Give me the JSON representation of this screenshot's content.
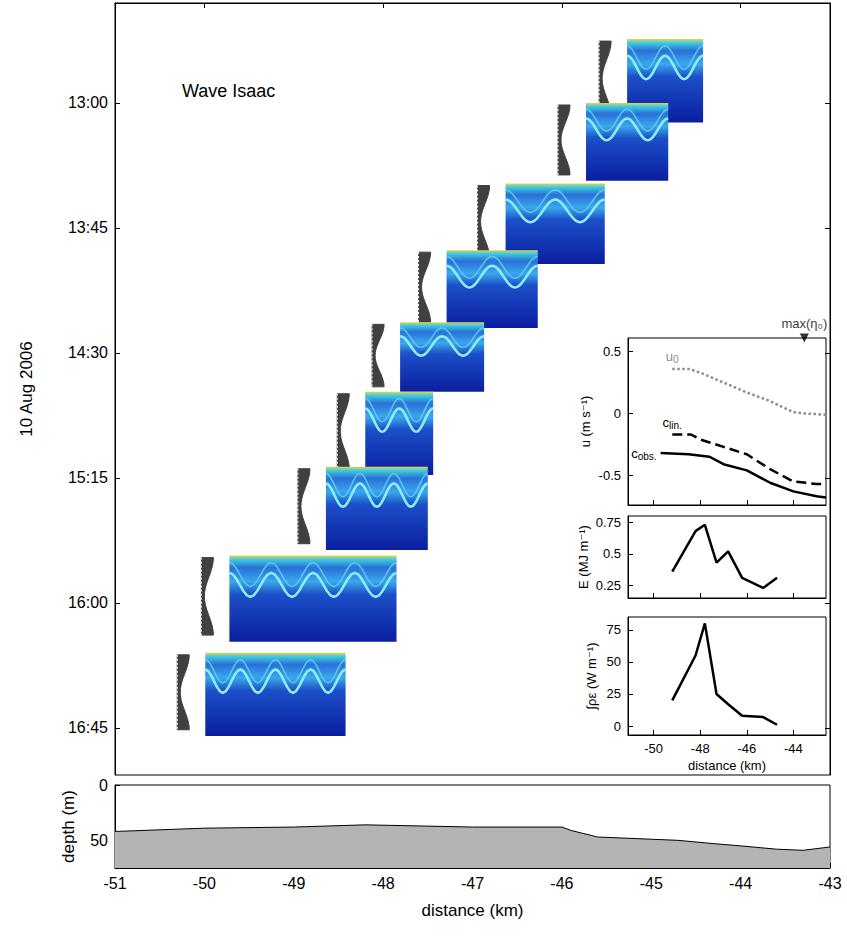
{
  "chart_data": [
    {
      "type": "custom",
      "title": "Wave Isaac",
      "ylabel": "10 Aug 2006",
      "xlim": [
        -51,
        -43
      ],
      "xticks": [
        -50,
        -48,
        -46,
        -44
      ],
      "ylim": [
        744,
        1022
      ],
      "yticks": [
        {
          "value": 780,
          "label": "13:00"
        },
        {
          "value": 825,
          "label": "13:45"
        },
        {
          "value": 870,
          "label": "14:30"
        },
        {
          "value": 915,
          "label": "15:15"
        },
        {
          "value": 960,
          "label": "16:00"
        },
        {
          "value": 1005,
          "label": "16:45"
        }
      ],
      "tick_labels": "y",
      "snapshots": [
        {
          "x": [
            -45.27,
            -44.42
          ],
          "t": [
            757,
            787
          ]
        },
        {
          "x": [
            -45.73,
            -44.81
          ],
          "t": [
            780,
            808
          ]
        },
        {
          "x": [
            -46.63,
            -45.52
          ],
          "t": [
            809,
            838
          ]
        },
        {
          "x": [
            -47.29,
            -46.27
          ],
          "t": [
            833,
            861
          ]
        },
        {
          "x": [
            -47.81,
            -46.87
          ],
          "t": [
            859,
            884
          ]
        },
        {
          "x": [
            -48.2,
            -47.44
          ],
          "t": [
            884,
            914
          ]
        },
        {
          "x": [
            -48.64,
            -47.5
          ],
          "t": [
            911,
            941
          ]
        },
        {
          "x": [
            -49.72,
            -47.85
          ],
          "t": [
            943,
            974
          ]
        },
        {
          "x": [
            -49.99,
            -48.42
          ],
          "t": [
            978,
            1008
          ]
        }
      ]
    },
    {
      "type": "line",
      "ylabel": "u (m s⁻¹)",
      "xlim": [
        -51.1,
        -42.6
      ],
      "xticks": [
        -50,
        -48,
        -46,
        -44
      ],
      "ylim": [
        -0.74,
        0.61
      ],
      "yticks": [
        -0.5,
        0,
        0.5
      ],
      "tick_labels": "y",
      "annotations": [
        {
          "text": "max(η₀)",
          "x": -43.53
        }
      ],
      "series": [
        {
          "name": "u",
          "subscript": "0",
          "color": "#8c8c8c",
          "line_style": "dotted",
          "x": [
            -49.2,
            -48.5,
            -48,
            -47,
            -46,
            -45,
            -44,
            -43.5,
            -42.6
          ],
          "values": [
            0.36,
            0.36,
            0.33,
            0.25,
            0.17,
            0.1,
            0.01,
            0,
            -0.01
          ]
        },
        {
          "name": "c",
          "subscript": "lin.",
          "color": "#000000",
          "line_style": "dashed",
          "x": [
            -49.2,
            -48.4,
            -48,
            -47,
            -46,
            -45,
            -44,
            -43,
            -42.6
          ],
          "values": [
            -0.17,
            -0.17,
            -0.21,
            -0.27,
            -0.33,
            -0.45,
            -0.55,
            -0.57,
            -0.57
          ]
        },
        {
          "name": "c",
          "subscript": "obs.",
          "color": "#000000",
          "line_style": "solid",
          "x": [
            -49.7,
            -48.5,
            -47.6,
            -47,
            -46,
            -45,
            -44,
            -43,
            -42.6
          ],
          "values": [
            -0.32,
            -0.33,
            -0.35,
            -0.41,
            -0.46,
            -0.56,
            -0.63,
            -0.67,
            -0.68
          ]
        }
      ]
    },
    {
      "type": "line",
      "ylabel": "E (MJ m⁻¹)",
      "xlim": [
        -51.1,
        -42.6
      ],
      "xticks": [
        -50,
        -48,
        -46,
        -44
      ],
      "ylim": [
        0.15,
        0.8
      ],
      "yticks": [
        0.25,
        0.5,
        0.75
      ],
      "tick_labels": "y",
      "color": "#000000",
      "line_style": "solid",
      "x": [
        -49.2,
        -48.2,
        -47.8,
        -47.3,
        -46.8,
        -46.2,
        -45.3,
        -44.7
      ],
      "values": [
        0.36,
        0.68,
        0.73,
        0.43,
        0.52,
        0.31,
        0.23,
        0.31
      ]
    },
    {
      "type": "line",
      "ylabel": "∫ρε (W m⁻¹)",
      "xlabel": "distance (km)",
      "xlim": [
        -51.1,
        -42.6
      ],
      "xticks": [
        -50,
        -48,
        -46,
        -44
      ],
      "ylim": [
        -7,
        85
      ],
      "yticks": [
        0,
        25,
        50,
        75
      ],
      "color": "#000000",
      "line_style": "solid",
      "x": [
        -49.2,
        -48.2,
        -47.8,
        -47.3,
        -46.8,
        -46.2,
        -45.3,
        -44.7
      ],
      "values": [
        20,
        55,
        80,
        25,
        17,
        8,
        7,
        1
      ]
    },
    {
      "type": "area",
      "ylabel": "depth (m)",
      "xlabel": "distance (km)",
      "xlim": [
        -51,
        -43
      ],
      "xticks": [
        -51,
        -50,
        -49,
        -48,
        -47,
        -46,
        -45,
        -44,
        -43
      ],
      "ylim": [
        0,
        75
      ],
      "yticks": [
        0,
        50
      ],
      "color": "#b4b4b4",
      "x": [
        -51,
        -50,
        -49,
        -48.2,
        -47,
        -46,
        -45.9,
        -45.6,
        -45,
        -44.7,
        -44.3,
        -44,
        -43.6,
        -43.3,
        -43
      ],
      "values": [
        42,
        39,
        38,
        36,
        38,
        38,
        41,
        47,
        49,
        50,
        53,
        55,
        58,
        59,
        56
      ]
    }
  ]
}
